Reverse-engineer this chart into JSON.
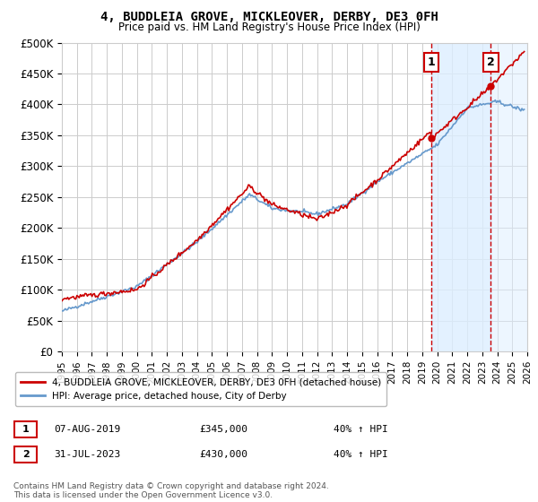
{
  "title": "4, BUDDLEIA GROVE, MICKLEOVER, DERBY, DE3 0FH",
  "subtitle": "Price paid vs. HM Land Registry's House Price Index (HPI)",
  "ylabel_ticks": [
    "£0",
    "£50K",
    "£100K",
    "£150K",
    "£200K",
    "£250K",
    "£300K",
    "£350K",
    "£400K",
    "£450K",
    "£500K"
  ],
  "ytick_values": [
    0,
    50000,
    100000,
    150000,
    200000,
    250000,
    300000,
    350000,
    400000,
    450000,
    500000
  ],
  "xlim_start": 1995,
  "xlim_end": 2026,
  "ylim": [
    0,
    500000
  ],
  "transaction1": {
    "date_num": 2019.6,
    "price": 345000,
    "label": "1",
    "pct": "40% ↑ HPI",
    "date_str": "07-AUG-2019",
    "price_str": "£345,000"
  },
  "transaction2": {
    "date_num": 2023.58,
    "price": 430000,
    "label": "2",
    "pct": "40% ↑ HPI",
    "date_str": "31-JUL-2023",
    "price_str": "£430,000"
  },
  "red_line_color": "#cc0000",
  "blue_line_color": "#6699cc",
  "background_color": "#ffffff",
  "grid_color": "#cccccc",
  "shade_color": "#ddeeff",
  "legend_line1": "4, BUDDLEIA GROVE, MICKLEOVER, DERBY, DE3 0FH (detached house)",
  "legend_line2": "HPI: Average price, detached house, City of Derby",
  "footnote": "Contains HM Land Registry data © Crown copyright and database right 2024.\nThis data is licensed under the Open Government Licence v3.0.",
  "xticks": [
    1995,
    1996,
    1997,
    1998,
    1999,
    2000,
    2001,
    2002,
    2003,
    2004,
    2005,
    2006,
    2007,
    2008,
    2009,
    2010,
    2011,
    2012,
    2013,
    2014,
    2015,
    2016,
    2017,
    2018,
    2019,
    2020,
    2021,
    2022,
    2023,
    2024,
    2025,
    2026
  ]
}
